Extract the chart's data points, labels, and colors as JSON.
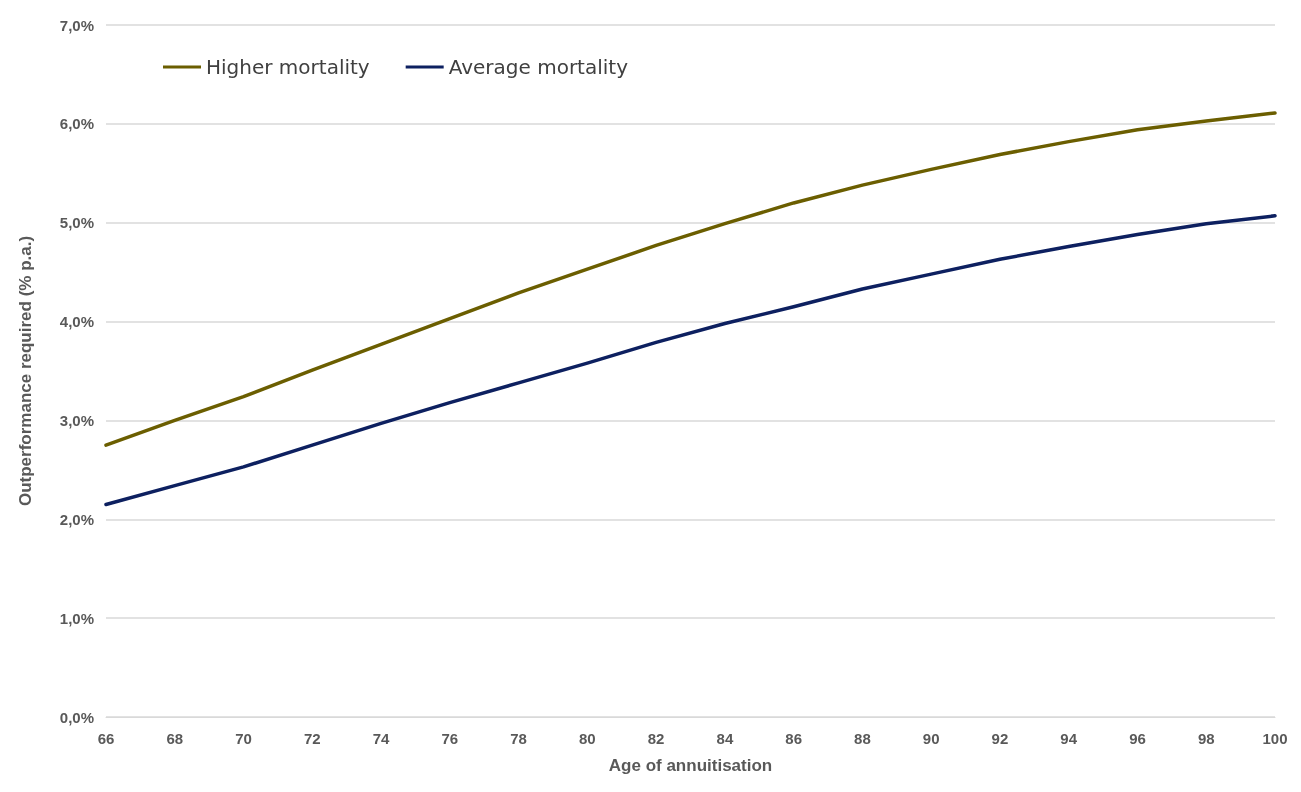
{
  "chart_data": {
    "type": "line",
    "xlabel": "Age of annuitisation",
    "ylabel": "Outperformance required (% p.a.)",
    "x": [
      66,
      68,
      70,
      72,
      74,
      76,
      78,
      80,
      82,
      84,
      86,
      88,
      90,
      92,
      94,
      96,
      98,
      100
    ],
    "series": [
      {
        "name": "Higher mortality",
        "color": "#6b5e00",
        "values": [
          2.75,
          3.0,
          3.24,
          3.51,
          3.77,
          4.03,
          4.29,
          4.53,
          4.77,
          4.99,
          5.2,
          5.38,
          5.54,
          5.69,
          5.82,
          5.94,
          6.03,
          6.11
        ]
      },
      {
        "name": "Average mortality",
        "color": "#0d2060",
        "values": [
          2.15,
          2.34,
          2.53,
          2.75,
          2.97,
          3.18,
          3.38,
          3.58,
          3.79,
          3.98,
          4.15,
          4.33,
          4.48,
          4.63,
          4.76,
          4.88,
          4.99,
          5.07
        ]
      }
    ],
    "xlim": [
      66,
      100
    ],
    "xticks": [
      66,
      68,
      70,
      72,
      74,
      76,
      78,
      80,
      82,
      84,
      86,
      88,
      90,
      92,
      94,
      96,
      98,
      100
    ],
    "ylim": [
      0,
      7
    ],
    "yticks": [
      {
        "value": 0,
        "label": "0,0%"
      },
      {
        "value": 1,
        "label": "1,0%"
      },
      {
        "value": 2,
        "label": "2,0%"
      },
      {
        "value": 3,
        "label": "3,0%"
      },
      {
        "value": 4,
        "label": "4,0%"
      },
      {
        "value": 5,
        "label": "5,0%"
      },
      {
        "value": 6,
        "label": "6,0%"
      },
      {
        "value": 7,
        "label": "7,0%"
      }
    ],
    "grid": "y",
    "legend": "top left",
    "marker": "none",
    "line_style": "solid"
  }
}
